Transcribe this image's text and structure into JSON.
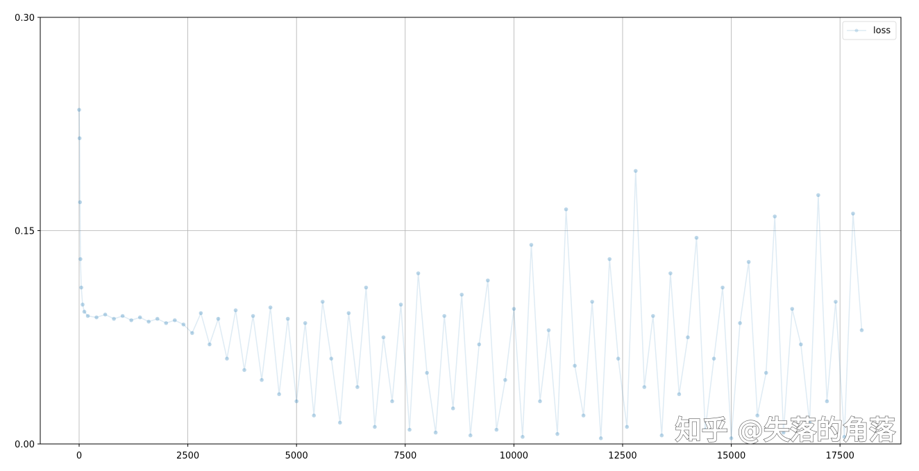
{
  "chart_data": {
    "type": "line",
    "xlim": [
      -894,
      18902
    ],
    "ylim": [
      0,
      0.3
    ],
    "xticks": [
      0,
      2500,
      5000,
      7500,
      10000,
      12500,
      15000,
      17500
    ],
    "yticks": [
      {
        "value": 0,
        "label": "0.00"
      },
      {
        "value": 0.15,
        "label": "0.15"
      },
      {
        "value": 0.3,
        "label": "0.30"
      }
    ],
    "grid": true,
    "legend": "upper right",
    "annotation": "知乎 @失落的角落",
    "x": [
      0,
      10,
      20,
      30,
      50,
      80,
      120,
      200,
      400,
      600,
      800,
      1000,
      1200,
      1400,
      1600,
      1800,
      2000,
      2200,
      2400,
      2600,
      2800,
      3000,
      3200,
      3400,
      3600,
      3800,
      4000,
      4200,
      4400,
      4600,
      4800,
      5000,
      5200,
      5400,
      5600,
      5800,
      6000,
      6200,
      6400,
      6600,
      6800,
      7000,
      7200,
      7400,
      7600,
      7800,
      8000,
      8200,
      8400,
      8600,
      8800,
      9000,
      9200,
      9400,
      9600,
      9800,
      10000,
      10200,
      10400,
      10600,
      10800,
      11000,
      11200,
      11400,
      11600,
      11800,
      12000,
      12200,
      12400,
      12600,
      12800,
      13000,
      13200,
      13400,
      13600,
      13800,
      14000,
      14200,
      14400,
      14600,
      14800,
      15000,
      15200,
      15400,
      15600,
      15800,
      16000,
      16200,
      16400,
      16600,
      16800,
      17000,
      17200,
      17400,
      17600,
      17800,
      18000
    ],
    "series": [
      {
        "name": "loss",
        "color": "#1f77b4",
        "values": [
          0.235,
          0.215,
          0.17,
          0.13,
          0.11,
          0.098,
          0.093,
          0.09,
          0.089,
          0.091,
          0.088,
          0.09,
          0.087,
          0.089,
          0.086,
          0.088,
          0.085,
          0.087,
          0.084,
          0.078,
          0.092,
          0.07,
          0.088,
          0.06,
          0.094,
          0.052,
          0.09,
          0.045,
          0.096,
          0.035,
          0.088,
          0.03,
          0.085,
          0.02,
          0.1,
          0.06,
          0.015,
          0.092,
          0.04,
          0.11,
          0.012,
          0.075,
          0.03,
          0.098,
          0.01,
          0.12,
          0.05,
          0.008,
          0.09,
          0.025,
          0.105,
          0.006,
          0.07,
          0.115,
          0.01,
          0.045,
          0.095,
          0.005,
          0.14,
          0.03,
          0.08,
          0.007,
          0.165,
          0.055,
          0.02,
          0.1,
          0.004,
          0.13,
          0.06,
          0.012,
          0.192,
          0.04,
          0.09,
          0.006,
          0.12,
          0.035,
          0.075,
          0.145,
          0.01,
          0.06,
          0.11,
          0.004,
          0.085,
          0.128,
          0.02,
          0.05,
          0.16,
          0.008,
          0.095,
          0.07,
          0.015,
          0.175,
          0.03,
          0.1,
          0.005,
          0.162,
          0.08
        ]
      }
    ]
  }
}
